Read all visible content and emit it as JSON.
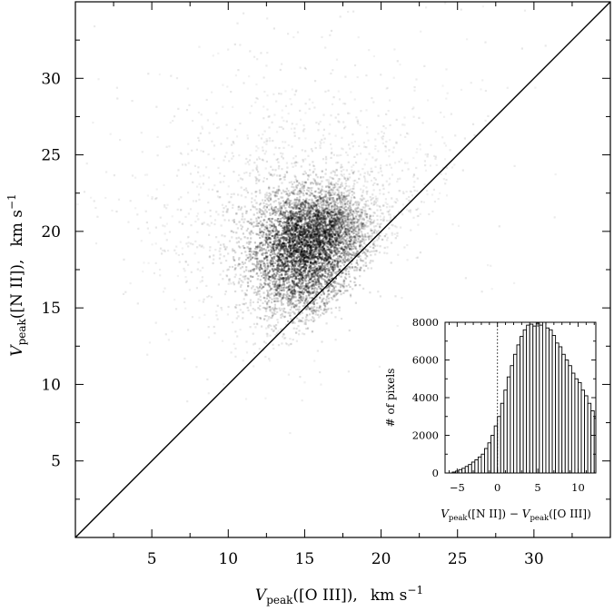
{
  "chart_data": [
    {
      "type": "scatter",
      "subtype": "density",
      "xlabel": "V_peak([O III]),   km s^-1",
      "ylabel": "V_peak([N II]),   km s^-1",
      "xlabel_parts": {
        "sym": "V",
        "sub": "peak",
        "arg": "([O III]),",
        "unit": "km s",
        "exp": "−1"
      },
      "ylabel_parts": {
        "sym": "V",
        "sub": "peak",
        "arg": "([N II]),",
        "unit": "km s",
        "exp": "−1"
      },
      "xlim": [
        0,
        35
      ],
      "ylim": [
        0,
        35
      ],
      "xticks": [
        "5",
        "10",
        "15",
        "20",
        "25",
        "30"
      ],
      "xtick_values": [
        5,
        10,
        15,
        20,
        25,
        30
      ],
      "yticks": [
        "5",
        "10",
        "15",
        "20",
        "25",
        "30"
      ],
      "ytick_values": [
        5,
        10,
        15,
        20,
        25,
        30
      ],
      "grid": false,
      "reference_line": {
        "x": [
          0,
          35
        ],
        "y": [
          0,
          35
        ]
      },
      "density_clusters": [
        {
          "cx": 14.5,
          "cy": 18.0,
          "sx": 1.8,
          "sy": 2.2,
          "w": 1.0
        },
        {
          "cx": 16.5,
          "cy": 20.5,
          "sx": 1.6,
          "sy": 1.3,
          "w": 0.75
        },
        {
          "cx": 15.5,
          "cy": 19.5,
          "sx": 4.5,
          "sy": 3.8,
          "w": 0.45
        },
        {
          "cx": 12.0,
          "cy": 21.0,
          "sx": 4.5,
          "sy": 4.0,
          "w": 0.18
        },
        {
          "cx": 20.0,
          "cy": 22.0,
          "sx": 5.0,
          "sy": 4.5,
          "w": 0.14
        },
        {
          "cx": 16.0,
          "cy": 27.0,
          "sx": 7.0,
          "sy": 4.5,
          "w": 0.08
        }
      ]
    },
    {
      "type": "bar",
      "subtype": "histogram",
      "xlabel": "V_peak([N II]) − V_peak([O III])",
      "xlabel_parts": {
        "sym": "V",
        "sub": "peak",
        "arg1": "([N II]) − ",
        "arg2": "([O III])"
      },
      "ylabel": "# of pixels",
      "xlim": [
        -6.5,
        12.2
      ],
      "ylim": [
        0,
        8000
      ],
      "xticks": [
        "−5",
        "0",
        "5",
        "10"
      ],
      "xtick_values": [
        -5,
        0,
        5,
        10
      ],
      "yticks": [
        "0",
        "2000",
        "4000",
        "6000",
        "8000"
      ],
      "ytick_values": [
        0,
        2000,
        4000,
        6000,
        8000
      ],
      "reference_line": {
        "x": 0,
        "style": "dotted"
      },
      "bin_width": 0.4,
      "bin_start": -6.0,
      "values": [
        0,
        50,
        100,
        180,
        250,
        350,
        450,
        580,
        700,
        850,
        1000,
        1300,
        1600,
        2000,
        2500,
        3000,
        3700,
        4400,
        5100,
        5700,
        6300,
        6800,
        7250,
        7600,
        7850,
        7900,
        7800,
        7950,
        7850,
        8000,
        7700,
        7600,
        7300,
        6900,
        6700,
        6300,
        6000,
        5700,
        5300,
        5000,
        4800,
        4400,
        4100,
        3700,
        3300,
        2900,
        2600
      ]
    }
  ]
}
